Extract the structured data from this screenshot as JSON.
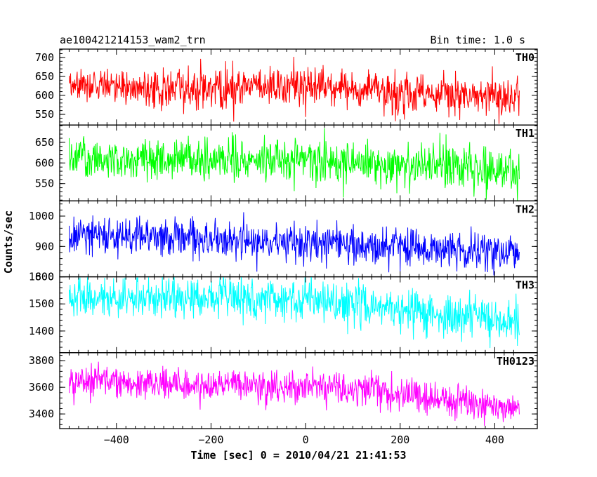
{
  "chart_data": {
    "type": "line",
    "title_left": "ae100421214153_wam2_trn",
    "title_right": "Bin time: 1.0 s",
    "xlabel": "Time [sec] 0 = 2010/04/21 21:41:53",
    "ylabel": "Counts/sec",
    "xlim": [
      -520,
      490
    ],
    "x_ticks": [
      -400,
      -200,
      0,
      200,
      400
    ],
    "x_tick_labels": [
      "−400",
      "−200",
      "0",
      "200",
      "400"
    ],
    "x_range": [
      -500,
      452
    ],
    "bin_time": 1.0,
    "panels": [
      {
        "name": "TH0",
        "color": "#ff0000",
        "ylim": [
          522,
          722
        ],
        "ticks": [
          550,
          600,
          650,
          700
        ],
        "tick_labels": [
          "550",
          "600",
          "650",
          "700"
        ],
        "trend": [
          [
            -500,
            622
          ],
          [
            -100,
            622
          ],
          [
            0,
            622
          ],
          [
            450,
            592
          ]
        ],
        "noise_sd": 27
      },
      {
        "name": "TH1",
        "color": "#00ff00",
        "ylim": [
          508,
          692
        ],
        "ticks": [
          550,
          600,
          650
        ],
        "tick_labels": [
          "550",
          "600",
          "650"
        ],
        "trend": [
          [
            -500,
            612
          ],
          [
            0,
            605
          ],
          [
            450,
            578
          ]
        ],
        "noise_sd": 26
      },
      {
        "name": "TH2",
        "color": "#0000ff",
        "ylim": [
          800,
          1050
        ],
        "ticks": [
          800,
          900,
          1000
        ],
        "tick_labels": [
          "800",
          "900",
          "1000"
        ],
        "trend": [
          [
            -500,
            938
          ],
          [
            0,
            915
          ],
          [
            450,
            878
          ]
        ],
        "noise_sd": 32
      },
      {
        "name": "TH3",
        "color": "#00ffff",
        "ylim": [
          1320,
          1600
        ],
        "ticks": [
          1400,
          1500,
          1600
        ],
        "tick_labels": [
          "1400",
          "1500",
          "1600"
        ],
        "trend": [
          [
            -500,
            1530
          ],
          [
            0,
            1515
          ],
          [
            450,
            1430
          ]
        ],
        "noise_sd": 38
      },
      {
        "name": "TH0123",
        "color": "#ff00ff",
        "ylim": [
          3290,
          3860
        ],
        "ticks": [
          3400,
          3600,
          3800
        ],
        "tick_labels": [
          "3400",
          "3600",
          "3800"
        ],
        "trend": [
          [
            -500,
            3645
          ],
          [
            0,
            3600
          ],
          [
            200,
            3560
          ],
          [
            450,
            3430
          ]
        ],
        "noise_sd": 62
      }
    ]
  }
}
